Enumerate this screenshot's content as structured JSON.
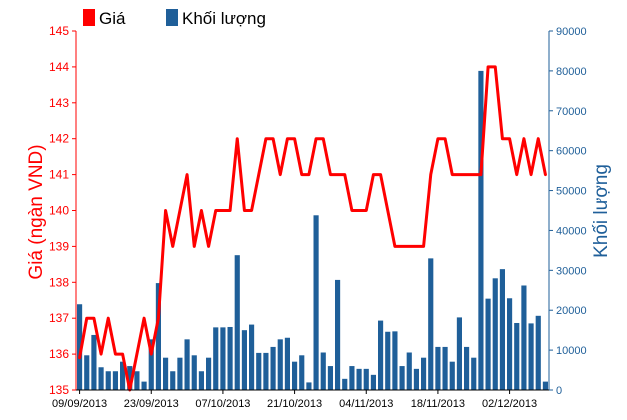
{
  "chart_data": {
    "type": "bar+line",
    "legend": {
      "placement": "top-left"
    },
    "grid": false,
    "x_tick_labels": [
      "09/09/2013",
      "23/09/2013",
      "07/10/2013",
      "21/10/2013",
      "04/11/2013",
      "18/11/2013",
      "02/12/2013"
    ],
    "y_left": {
      "label": "Giá (ngàn VND)",
      "range": [
        135,
        145
      ],
      "ticks": [
        "135",
        "136",
        "137",
        "138",
        "139",
        "140",
        "141",
        "142",
        "143",
        "144",
        "145"
      ]
    },
    "y_right": {
      "label": "Khối lượng",
      "range": [
        0,
        90000
      ],
      "ticks": [
        "0",
        "10000",
        "20000",
        "30000",
        "40000",
        "50000",
        "60000",
        "70000",
        "80000",
        "90000"
      ]
    },
    "series": [
      {
        "name": "Giá",
        "kind": "line",
        "axis": "left",
        "color": "#ff0000",
        "values": [
          135.9,
          137.0,
          137.0,
          136.0,
          137.0,
          136.0,
          136.0,
          135.0,
          136.0,
          137.0,
          136.0,
          137.0,
          140.0,
          139.0,
          140.0,
          141.0,
          139.0,
          140.0,
          139.0,
          140.0,
          140.0,
          140.0,
          142.0,
          140.0,
          140.0,
          141.0,
          142.0,
          142.0,
          141.0,
          142.0,
          142.0,
          141.0,
          141.0,
          142.0,
          142.0,
          141.0,
          141.0,
          141.0,
          140.0,
          140.0,
          140.0,
          141.0,
          141.0,
          140.0,
          139.0,
          139.0,
          139.0,
          139.0,
          139.0,
          141.0,
          142.0,
          142.0,
          141.0,
          141.0,
          141.0,
          141.0,
          141.0,
          144.0,
          144.0,
          142.0,
          142.0,
          141.0,
          142.0,
          141.0,
          142.0,
          141.0
        ]
      },
      {
        "name": "Khối lượng",
        "kind": "bar",
        "axis": "right",
        "color": "#1f5f99",
        "values": [
          21500,
          8700,
          13800,
          5700,
          4700,
          4700,
          7100,
          6000,
          4700,
          2100,
          12700,
          26800,
          8100,
          4700,
          8100,
          12700,
          8700,
          4700,
          8100,
          15700,
          15700,
          15800,
          33800,
          15000,
          16400,
          9300,
          9300,
          10800,
          12700,
          13100,
          7100,
          8700,
          1900,
          43800,
          9400,
          6000,
          27600,
          2800,
          6000,
          5300,
          5300,
          3800,
          17400,
          14600,
          14700,
          6000,
          9400,
          5300,
          8100,
          33000,
          10800,
          10800,
          7100,
          18200,
          10800,
          8100,
          80000,
          22900,
          28000,
          30300,
          23000,
          16800,
          26200,
          16700,
          18600,
          2100
        ]
      }
    ]
  }
}
